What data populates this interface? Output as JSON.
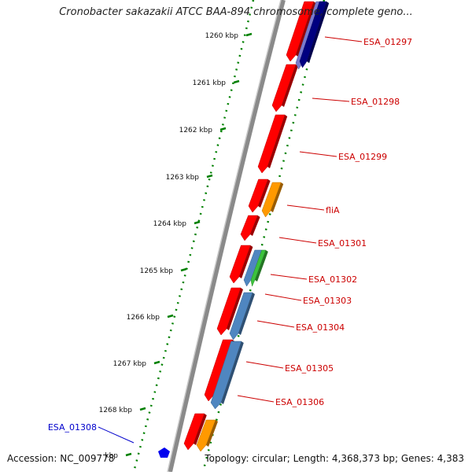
{
  "title": "Cronobacter sakazakii ATCC BAA-894 chromosome, complete geno...",
  "footer": {
    "accession": "Accession: NC_009778",
    "topology": "Topology: circular; Length: 4,368,373 bp; Genes: 4,383"
  },
  "ticks": [
    {
      "label": "1260 kbp"
    },
    {
      "label": "1261 kbp"
    },
    {
      "label": "1262 kbp"
    },
    {
      "label": "1263 kbp"
    },
    {
      "label": "1264 kbp"
    },
    {
      "label": "1265 kbp"
    },
    {
      "label": "1266 kbp"
    },
    {
      "label": "1267 kbp"
    },
    {
      "label": "1268 kbp"
    },
    {
      "label": "kbp"
    }
  ],
  "genes": [
    {
      "label": "ESA_01297",
      "color": "#cc0000"
    },
    {
      "label": "ESA_01298",
      "color": "#cc0000"
    },
    {
      "label": "ESA_01299",
      "color": "#cc0000"
    },
    {
      "label": "fliA",
      "color": "#cc0000"
    },
    {
      "label": "ESA_01301",
      "color": "#cc0000"
    },
    {
      "label": "ESA_01302",
      "color": "#cc0000"
    },
    {
      "label": "ESA_01303",
      "color": "#cc0000"
    },
    {
      "label": "ESA_01304",
      "color": "#cc0000"
    },
    {
      "label": "ESA_01305",
      "color": "#cc0000"
    },
    {
      "label": "ESA_01306",
      "color": "#cc0000"
    },
    {
      "label": "ESA_01308",
      "color": "#0000cc"
    }
  ],
  "colors": {
    "cds": "#ff0000",
    "gene_dark": "#000080",
    "gene_light": "#7a7acc",
    "orange": "#ff9900",
    "blue": "#4f86c0",
    "green": "#3cc33c",
    "blue_marker": "#0000ee",
    "backbone": "#888888",
    "dotted_axis": "#008000",
    "label_red": "#cc0000",
    "label_blue": "#0000cc"
  }
}
